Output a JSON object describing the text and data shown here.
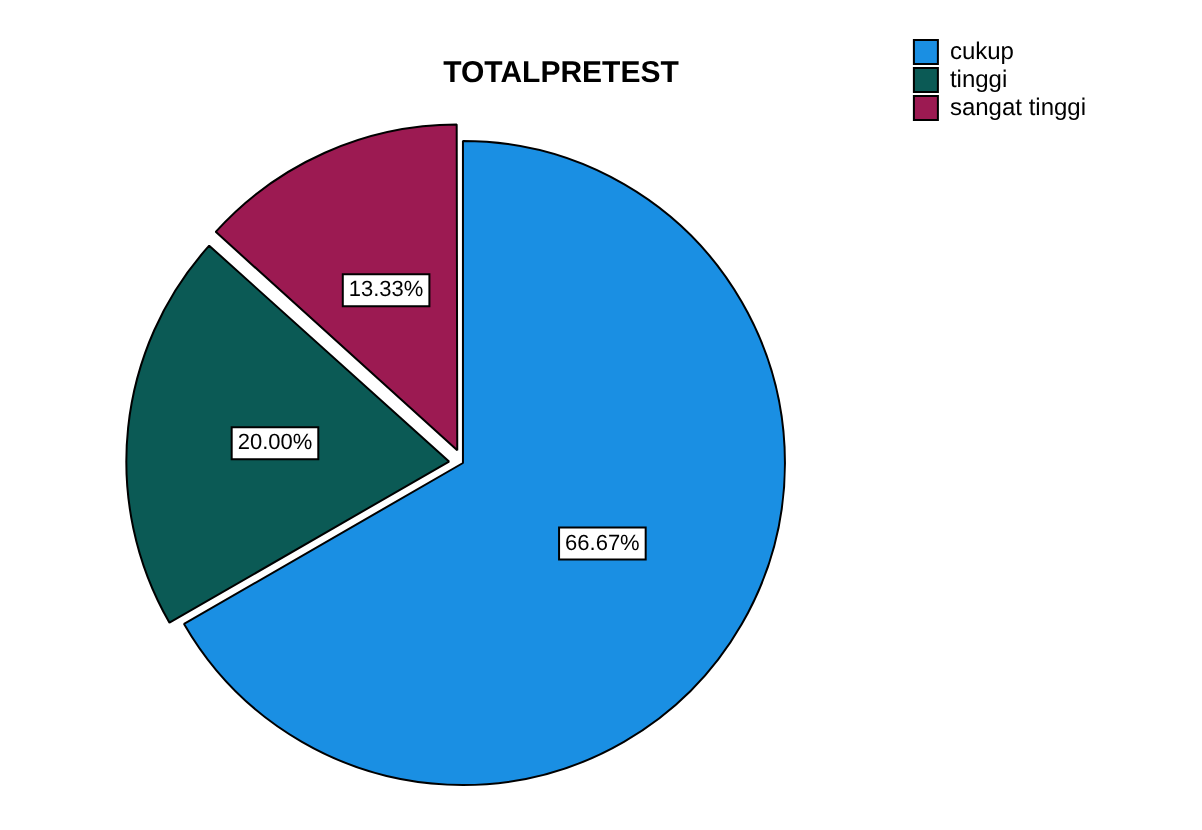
{
  "chart_data": {
    "type": "pie",
    "title": "TOTALPRETEST",
    "categories": [
      "cukup",
      "tinggi",
      "sangat tinggi"
    ],
    "values": [
      66.67,
      20.0,
      13.33
    ],
    "colors": [
      "#1a8fe3",
      "#0b5a55",
      "#9c1a52"
    ],
    "value_labels": [
      "66.67%",
      "20.00%",
      "13.33%"
    ],
    "legend": "top right"
  }
}
